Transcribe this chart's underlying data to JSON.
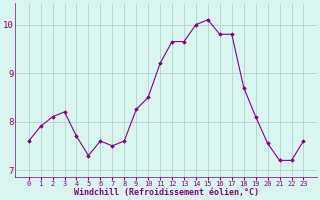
{
  "x": [
    0,
    1,
    2,
    3,
    4,
    5,
    6,
    7,
    8,
    9,
    10,
    11,
    12,
    13,
    14,
    15,
    16,
    17,
    18,
    19,
    20,
    21,
    22,
    23
  ],
  "y": [
    7.6,
    7.9,
    8.1,
    8.2,
    7.7,
    7.3,
    7.6,
    7.5,
    7.6,
    8.25,
    8.5,
    9.2,
    9.65,
    9.65,
    10.0,
    10.1,
    9.8,
    9.8,
    8.7,
    8.1,
    7.55,
    7.2,
    7.2,
    7.6
  ],
  "line_color": "#880088",
  "marker": "D",
  "marker_size": 1.8,
  "bg_color": "#d8f5f0",
  "grid_color": "#aacccc",
  "xlabel": "Windchill (Refroidissement éolien,°C)",
  "xlabel_color": "#880088",
  "ylim": [
    6.85,
    10.45
  ],
  "yticks": [
    7,
    8,
    9,
    10
  ],
  "xticks": [
    0,
    1,
    2,
    3,
    4,
    5,
    6,
    7,
    8,
    9,
    10,
    11,
    12,
    13,
    14,
    15,
    16,
    17,
    18,
    19,
    20,
    21,
    22,
    23
  ],
  "tick_color": "#880088",
  "tick_fontsize": 5.0,
  "ytick_fontsize": 6.5,
  "xlabel_fontsize": 6.0,
  "xlabel_fontweight": "bold",
  "linewidth": 0.8
}
